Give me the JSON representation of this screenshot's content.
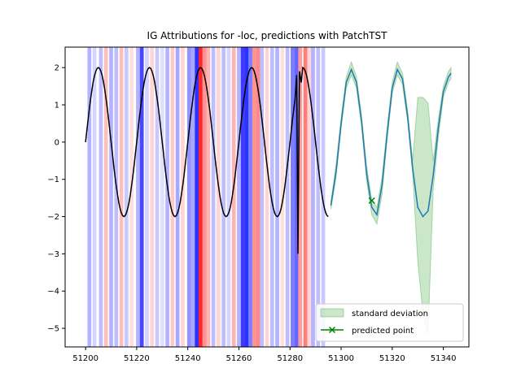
{
  "chart_data": {
    "type": "line",
    "title": "IG Attributions for -loc, predictions with PatchTST",
    "xlabel": "",
    "ylabel": "",
    "xlim": [
      51192,
      51350
    ],
    "ylim": [
      -5.5,
      2.55
    ],
    "xticks": [
      51200,
      51220,
      51240,
      51260,
      51280,
      51300,
      51320,
      51340
    ],
    "yticks": [
      -5,
      -4,
      -3,
      -2,
      -1,
      0,
      1,
      2
    ],
    "grid": false,
    "legend_position": "lower right",
    "legend": {
      "std_label": "standard deviation",
      "point_label": "predicted point"
    },
    "colors": {
      "input_line": "#000000",
      "forecast_line": "#1f77b4",
      "std_fill": "#2ca02c",
      "predicted_point": "#008000",
      "positive_attr": "#ff0000",
      "negative_attr": "#0000ff"
    },
    "attribution_range": [
      51200,
      51295
    ],
    "attributions": [
      [
        51201.5,
        -0.35
      ],
      [
        51203.5,
        -0.2
      ],
      [
        51206,
        -0.3
      ],
      [
        51208,
        0.3
      ],
      [
        51210,
        -0.35
      ],
      [
        51212,
        -0.3
      ],
      [
        51214,
        0.3
      ],
      [
        51216,
        -0.25
      ],
      [
        51218,
        0.15
      ],
      [
        51220.5,
        -0.35
      ],
      [
        51222,
        -0.85
      ],
      [
        51224,
        -0.2
      ],
      [
        51226,
        0.2
      ],
      [
        51228,
        -0.25
      ],
      [
        51230,
        -0.15
      ],
      [
        51232,
        -0.35
      ],
      [
        51234,
        0.25
      ],
      [
        51236,
        -0.4
      ],
      [
        51238,
        0.2
      ],
      [
        51240.5,
        -0.5
      ],
      [
        51242,
        -0.4
      ],
      [
        51243.5,
        -0.95
      ],
      [
        51245,
        1.0
      ],
      [
        51246.5,
        0.5
      ],
      [
        51248,
        0.35
      ],
      [
        51250,
        -0.3
      ],
      [
        51252,
        0.2
      ],
      [
        51254,
        -0.3
      ],
      [
        51256,
        -0.2
      ],
      [
        51258,
        0.35
      ],
      [
        51260,
        -0.35
      ],
      [
        51261.5,
        -0.9
      ],
      [
        51263,
        -0.95
      ],
      [
        51264.5,
        -0.6
      ],
      [
        51266,
        0.5
      ],
      [
        51267.5,
        0.55
      ],
      [
        51269,
        -0.3
      ],
      [
        51271,
        0.2
      ],
      [
        51273,
        -0.3
      ],
      [
        51275,
        -0.35
      ],
      [
        51277,
        0.15
      ],
      [
        51279,
        -0.3
      ],
      [
        51281,
        -0.6
      ],
      [
        51282.5,
        -0.7
      ],
      [
        51284,
        0.45
      ],
      [
        51286,
        0.6
      ],
      [
        51287.5,
        0.2
      ],
      [
        51289,
        -0.35
      ],
      [
        51291,
        -0.3
      ],
      [
        51293,
        -0.25
      ]
    ],
    "input_series": {
      "x_start": 51200,
      "x_end": 51295,
      "step": 0.5,
      "amplitude": 2.0,
      "period": 20,
      "peak_x": 51205,
      "anomaly": [
        [
          51282.6,
          1.8
        ],
        [
          51283.1,
          -3.0
        ],
        [
          51283.7,
          1.9
        ],
        [
          51284.4,
          1.6
        ]
      ]
    },
    "forecast": {
      "x": [
        51296,
        51298,
        51300,
        51302,
        51304,
        51306,
        51308,
        51310,
        51312,
        51314,
        51316,
        51318,
        51320,
        51322,
        51324,
        51326,
        51328,
        51330,
        51332,
        51334,
        51336,
        51338,
        51340,
        51342,
        51343
      ],
      "mean": [
        -1.7,
        -0.8,
        0.5,
        1.6,
        1.95,
        1.6,
        0.55,
        -0.85,
        -1.75,
        -1.95,
        -1.15,
        0.2,
        1.45,
        1.95,
        1.7,
        0.7,
        -0.7,
        -1.75,
        -2.0,
        -1.85,
        -0.9,
        0.35,
        1.35,
        1.75,
        1.85
      ],
      "lower": [
        -1.8,
        -0.95,
        0.35,
        1.45,
        1.8,
        1.45,
        0.4,
        -1.05,
        -1.95,
        -2.2,
        -1.4,
        0.05,
        1.3,
        1.8,
        1.55,
        0.55,
        -0.85,
        -3.2,
        -4.6,
        -5.15,
        -1.3,
        0.1,
        1.2,
        1.6,
        1.7
      ],
      "upper": [
        -1.6,
        -0.6,
        0.65,
        1.75,
        2.15,
        1.75,
        0.7,
        -0.65,
        -1.55,
        -1.75,
        -0.95,
        0.4,
        1.6,
        2.15,
        1.85,
        0.85,
        -0.5,
        1.2,
        1.2,
        1.05,
        -0.5,
        0.6,
        1.5,
        1.9,
        2.0
      ]
    },
    "predicted_point": [
      51312,
      -1.57
    ]
  }
}
